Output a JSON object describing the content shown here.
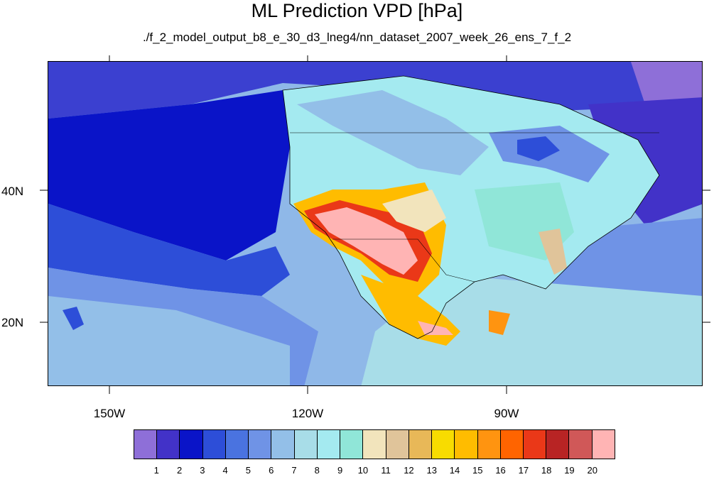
{
  "title": "ML Prediction VPD [hPa]",
  "subtitle": "./f_2_model_output_b8_e_30_d3_lneg4/nn_dataset_2007_week_26_ens_7_f_2",
  "axes": {
    "lat_labels": [
      "40N",
      "20N"
    ],
    "lon_labels": [
      "150W",
      "120W",
      "90W"
    ]
  },
  "colorbar": {
    "levels": [
      "1",
      "2",
      "3",
      "4",
      "5",
      "6",
      "7",
      "8",
      "9",
      "10",
      "11",
      "12",
      "13",
      "14",
      "15",
      "16",
      "17",
      "18",
      "19",
      "20"
    ],
    "colors": [
      "#8e6fd8",
      "#4232c8",
      "#0a14c8",
      "#2d4ed8",
      "#4a73e0",
      "#6f93e6",
      "#93bfe8",
      "#a8dde8",
      "#a4eaf0",
      "#90e6d8",
      "#f2e4bc",
      "#e0c49a",
      "#e8b858",
      "#f8dc00",
      "#ffbc00",
      "#ff9410",
      "#ff6400",
      "#ea3818",
      "#b82424",
      "#d05858",
      "#ffb4b4"
    ]
  },
  "map": {
    "region": "North America / NE Pacific",
    "lon_range": [
      -160,
      -62
    ],
    "lat_range": [
      11,
      61
    ]
  }
}
